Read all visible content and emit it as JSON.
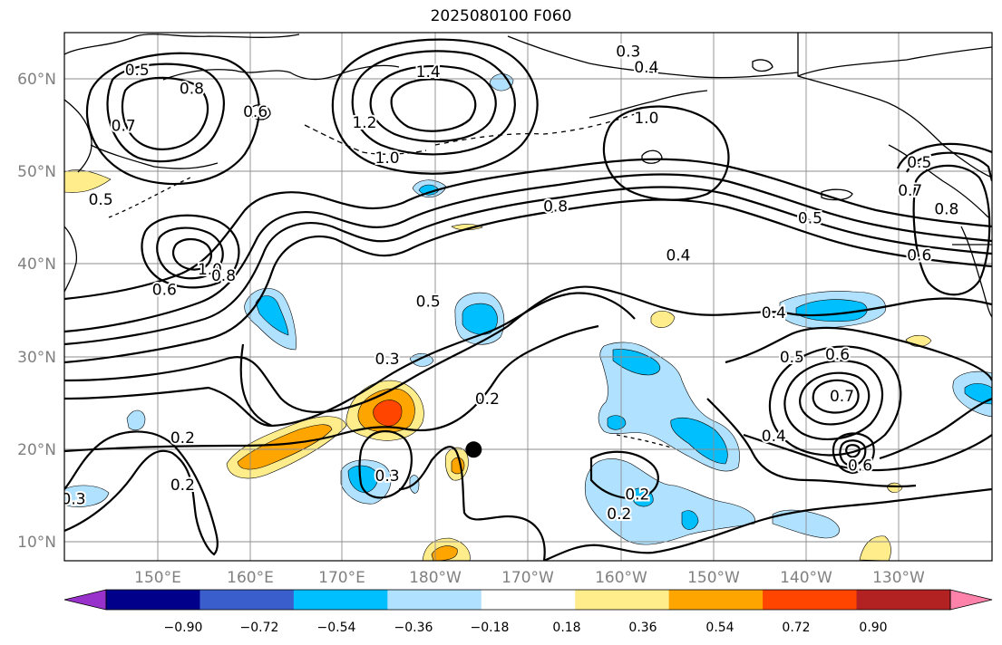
{
  "title": "2025080100 F060",
  "map": {
    "lat_labels": [
      "10°N",
      "20°N",
      "30°N",
      "40°N",
      "50°N",
      "60°N"
    ],
    "lon_labels": [
      "150°E",
      "160°E",
      "170°E",
      "180°W",
      "170°W",
      "160°W",
      "150°W",
      "140°W",
      "130°W"
    ],
    "lat_values": [
      10,
      20,
      30,
      40,
      50,
      60
    ],
    "lon_values": [
      150,
      160,
      170,
      180,
      190,
      200,
      210,
      220,
      230
    ],
    "extent": {
      "lon": [
        140,
        242
      ],
      "lat": [
        8,
        65
      ]
    },
    "gridlines": true,
    "storm_center": {
      "lon": 185,
      "lat": 20
    }
  },
  "colorbar": {
    "ticks": [
      "−0.90",
      "−0.72",
      "−0.54",
      "−0.36",
      "−0.18",
      "0.18",
      "0.36",
      "0.54",
      "0.72",
      "0.90"
    ],
    "colors": [
      "#9932cc",
      "#00008b",
      "#3a5fcd",
      "#00bfff",
      "#b0e2ff",
      "#ffffff",
      "#ffec8b",
      "#ffa500",
      "#ff4500",
      "#b22222",
      "#ff82ab"
    ],
    "extend": "both"
  },
  "contour_labels": [
    {
      "text": "0.5",
      "lon": 148,
      "lat": 61
    },
    {
      "text": "0.8",
      "lon": 154,
      "lat": 59
    },
    {
      "text": "0.7",
      "lon": 146.5,
      "lat": 55
    },
    {
      "text": "0.6",
      "lon": 161,
      "lat": 56.5
    },
    {
      "text": "1.4",
      "lon": 180,
      "lat": 60.8
    },
    {
      "text": "1.2",
      "lon": 173,
      "lat": 55.3
    },
    {
      "text": "1.0",
      "lon": 175.5,
      "lat": 51.5
    },
    {
      "text": "0.3",
      "lon": 202,
      "lat": 63
    },
    {
      "text": "0.4",
      "lon": 204,
      "lat": 61.3
    },
    {
      "text": "1.0",
      "lon": 204,
      "lat": 55.8
    },
    {
      "text": "0.5",
      "lon": 234,
      "lat": 51
    },
    {
      "text": "0.5",
      "lon": 144,
      "lat": 47
    },
    {
      "text": "0.8",
      "lon": 194,
      "lat": 46.3
    },
    {
      "text": "0.5",
      "lon": 222,
      "lat": 45
    },
    {
      "text": "0.7",
      "lon": 233,
      "lat": 48
    },
    {
      "text": "0.8",
      "lon": 237,
      "lat": 46
    },
    {
      "text": "0.6",
      "lon": 234,
      "lat": 41
    },
    {
      "text": "0.4",
      "lon": 207.5,
      "lat": 41
    },
    {
      "text": "1.0",
      "lon": 156,
      "lat": 39.5
    },
    {
      "text": "0.8",
      "lon": 157.5,
      "lat": 38.8
    },
    {
      "text": "0.6",
      "lon": 151,
      "lat": 37.3
    },
    {
      "text": "0.5",
      "lon": 180,
      "lat": 36
    },
    {
      "text": "0.4",
      "lon": 218,
      "lat": 34.8
    },
    {
      "text": "0.3",
      "lon": 175.5,
      "lat": 29.8
    },
    {
      "text": "0.5",
      "lon": 220,
      "lat": 30
    },
    {
      "text": "0.6",
      "lon": 225,
      "lat": 30.3
    },
    {
      "text": "0.2",
      "lon": 186.5,
      "lat": 25.5
    },
    {
      "text": "0.7",
      "lon": 225.5,
      "lat": 25.8
    },
    {
      "text": "0.2",
      "lon": 153,
      "lat": 21.3
    },
    {
      "text": "0.4",
      "lon": 218,
      "lat": 21.5
    },
    {
      "text": "0.3",
      "lon": 175.5,
      "lat": 17.2
    },
    {
      "text": "0.2",
      "lon": 153,
      "lat": 16.2
    },
    {
      "text": "0.6",
      "lon": 227.5,
      "lat": 18.3
    },
    {
      "text": "0.3",
      "lon": 141,
      "lat": 14.7
    },
    {
      "text": "0.2",
      "lon": 203,
      "lat": 15.2
    },
    {
      "text": "0.2",
      "lon": 201,
      "lat": 13.1
    }
  ]
}
